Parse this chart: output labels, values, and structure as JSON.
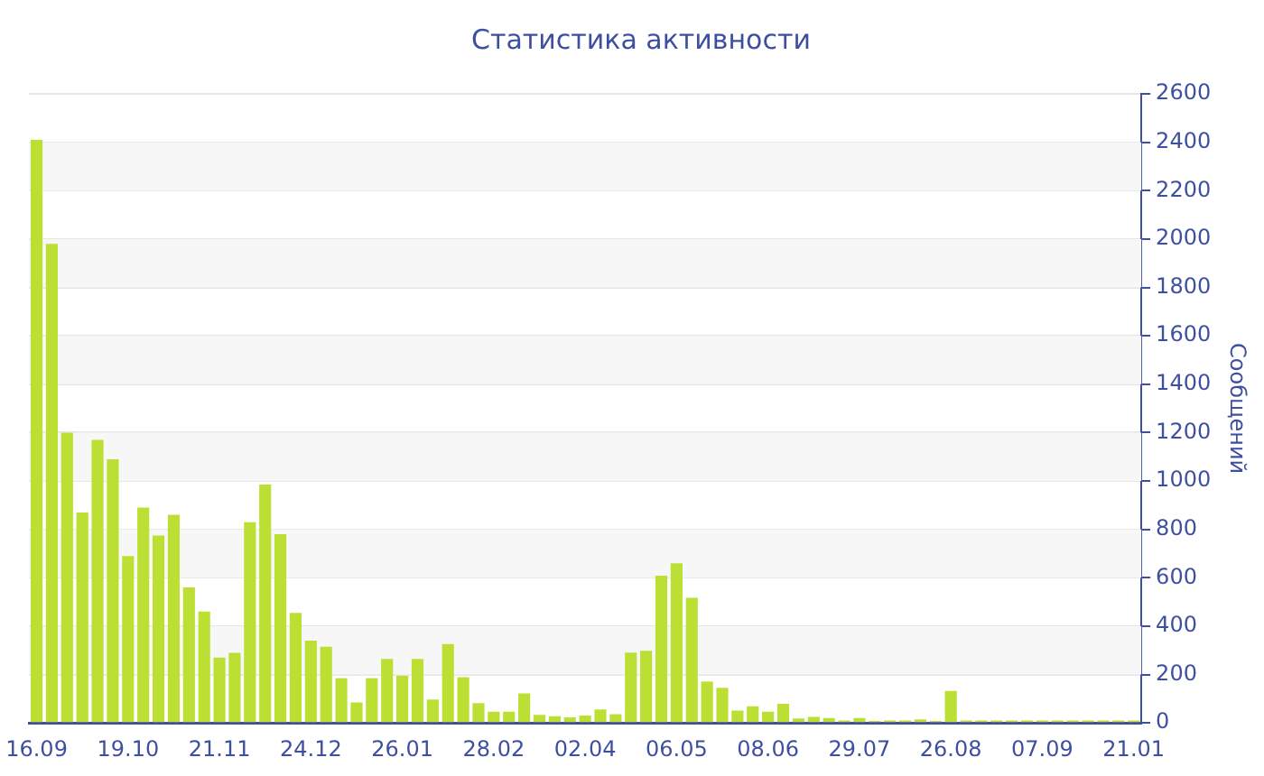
{
  "chart_data": {
    "type": "bar",
    "title": "Статистика активности",
    "ylabel": "Сообщений",
    "categories": [
      "16.09",
      null,
      null,
      null,
      null,
      null,
      "19.10",
      null,
      null,
      null,
      null,
      null,
      "21.11",
      null,
      null,
      null,
      null,
      null,
      "24.12",
      null,
      null,
      null,
      null,
      null,
      "26.01",
      null,
      null,
      null,
      null,
      null,
      "28.02",
      null,
      null,
      null,
      null,
      null,
      "02.04",
      null,
      null,
      null,
      null,
      null,
      "06.05",
      null,
      null,
      null,
      null,
      null,
      "08.06",
      null,
      null,
      null,
      null,
      null,
      "29.07",
      null,
      null,
      null,
      null,
      null,
      "26.08",
      null,
      null,
      null,
      null,
      null,
      "07.09",
      null,
      null,
      null,
      null,
      null,
      "21.01"
    ],
    "values": [
      2410,
      1980,
      1200,
      870,
      1170,
      1090,
      690,
      890,
      775,
      860,
      560,
      460,
      270,
      290,
      830,
      985,
      780,
      455,
      340,
      315,
      185,
      85,
      185,
      265,
      195,
      265,
      97,
      326,
      189,
      82,
      46,
      46,
      122,
      33,
      28,
      23,
      31,
      56,
      36,
      291,
      298,
      609,
      660,
      517,
      171,
      145,
      51,
      69,
      46,
      79,
      18,
      25,
      20,
      10,
      20,
      8,
      10,
      10,
      15,
      8,
      132,
      10,
      10,
      10,
      10,
      10,
      10,
      10,
      10,
      10,
      10,
      10,
      10
    ],
    "color": "#bbe033",
    "ylim": [
      0,
      2600
    ],
    "yticks": [
      0,
      200,
      400,
      600,
      800,
      1000,
      1200,
      1400,
      1600,
      1800,
      2000,
      2200,
      2400,
      2600
    ],
    "grid": "y",
    "legend": false
  }
}
